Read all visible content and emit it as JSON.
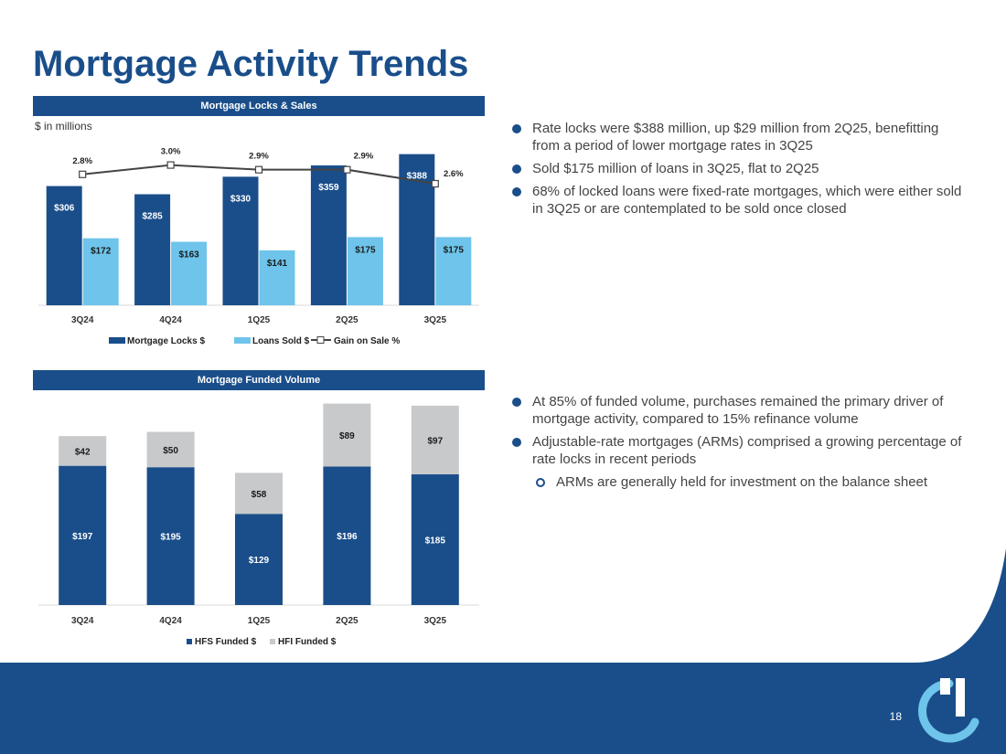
{
  "slide": {
    "title": "Mortgage Activity Trends",
    "page_number": "18",
    "colors": {
      "brand_dark": "#1a4e8a",
      "brand_light": "#6ec4ea",
      "hfi_gray": "#c8c9cb",
      "footer_curve": "#3a8fd2"
    }
  },
  "panels": {
    "locks_sales": {
      "header": "Mortgage Locks & Sales",
      "units": "$ in millions"
    },
    "funded": {
      "header": "Mortgage Funded Volume"
    }
  },
  "chart_data": [
    {
      "type": "bar",
      "title": "Mortgage Locks & Sales",
      "categories": [
        "3Q24",
        "4Q24",
        "1Q25",
        "2Q25",
        "3Q25"
      ],
      "series": [
        {
          "name": "Mortgage Locks $",
          "values": [
            306,
            285,
            330,
            359,
            388
          ],
          "labels": [
            "$306",
            "$285",
            "$330",
            "$359",
            "$388"
          ],
          "color": "#1a4e8a"
        },
        {
          "name": "Loans Sold $",
          "values": [
            172,
            163,
            141,
            175,
            175
          ],
          "labels": [
            "$172",
            "$163",
            "$141",
            "$175",
            "$175"
          ],
          "color": "#6ec4ea"
        },
        {
          "name": "Gain on Sale %",
          "type": "line",
          "values": [
            2.8,
            3.0,
            2.9,
            2.9,
            2.6
          ],
          "labels": [
            "2.8%",
            "3.0%",
            "2.9%",
            "2.9%",
            "2.6%"
          ],
          "color": "#444444"
        }
      ],
      "ylim": [
        0,
        420
      ],
      "y2lim": [
        0,
        3.5
      ],
      "legend": [
        "Mortgage Locks $",
        "Loans Sold $",
        "Gain on Sale %"
      ]
    },
    {
      "type": "bar",
      "stacked": true,
      "title": "Mortgage Funded Volume",
      "categories": [
        "3Q24",
        "4Q24",
        "1Q25",
        "2Q25",
        "3Q25"
      ],
      "series": [
        {
          "name": "HFS Funded $",
          "values": [
            197,
            195,
            129,
            196,
            185
          ],
          "labels": [
            "$197",
            "$195",
            "$129",
            "$196",
            "$185"
          ],
          "color": "#1a4e8a"
        },
        {
          "name": "HFI Funded $",
          "values": [
            42,
            50,
            58,
            89,
            97
          ],
          "labels": [
            "$42",
            "$50",
            "$58",
            "$89",
            "$97"
          ],
          "color": "#c8c9cb"
        }
      ],
      "ylim": [
        0,
        300
      ],
      "legend": [
        "HFS Funded $",
        "HFI Funded $"
      ]
    }
  ],
  "commentary": {
    "top": [
      "Rate locks were $388 million, up $29 million from 2Q25, benefitting from a period of lower mortgage rates in 3Q25",
      "Sold $175 million of loans in 3Q25, flat to 2Q25",
      "68% of locked loans were fixed-rate mortgages, which were either sold in 3Q25 or are contemplated to be sold once closed"
    ],
    "bottom": [
      "At 85% of funded volume, purchases remained the primary driver of mortgage activity, compared to 15% refinance volume",
      "Adjustable-rate mortgages (ARMs) comprised a growing percentage of rate locks in recent periods"
    ],
    "bottom_sub": "ARMs are generally held for investment on the balance sheet"
  }
}
